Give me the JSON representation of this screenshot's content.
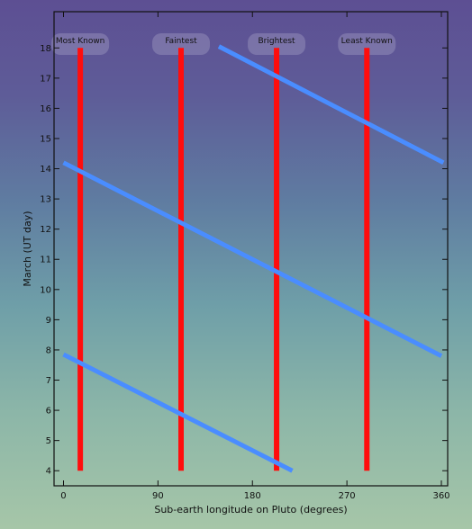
{
  "colors": {
    "background_top": "#5d4f93",
    "background_bottom": "#a6c6a8",
    "reference_line": "#ff0d0d",
    "data_line": "#4a8dff",
    "axis": "#111111"
  },
  "chart_data": {
    "type": "line",
    "title": "",
    "xlabel": "Sub-earth longitude on Pluto (degrees)",
    "ylabel": "March  (UT day)",
    "xlim": [
      -9,
      366
    ],
    "ylim": [
      3.5,
      19.2
    ],
    "xticks": [
      0,
      90,
      180,
      270,
      360
    ],
    "yticks": [
      4,
      5,
      6,
      7,
      8,
      9,
      10,
      11,
      12,
      13,
      14,
      15,
      16,
      17,
      18
    ],
    "grid": false,
    "legend": "none",
    "reference_lines": [
      {
        "label": "Most Known",
        "x": 16,
        "y_from": 4,
        "y_to": 18
      },
      {
        "label": "Faintest",
        "x": 112,
        "y_from": 4,
        "y_to": 18
      },
      {
        "label": "Brightest",
        "x": 203,
        "y_from": 4,
        "y_to": 18
      },
      {
        "label": "Least Known",
        "x": 289,
        "y_from": 4,
        "y_to": 18
      }
    ],
    "series": [
      {
        "x": [
          0,
          218
        ],
        "y": [
          7.85,
          4.0
        ]
      },
      {
        "x": [
          0,
          360
        ],
        "y": [
          14.2,
          7.8
        ]
      },
      {
        "x": [
          148,
          362
        ],
        "y": [
          18.05,
          14.2
        ]
      }
    ]
  }
}
